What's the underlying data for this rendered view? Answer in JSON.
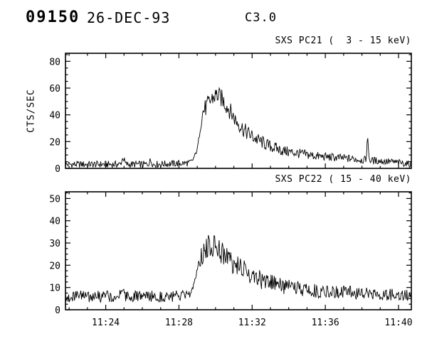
{
  "header": {
    "flare_id": "09150",
    "date": "26-DEC-93",
    "goes_class": "C3.0"
  },
  "chart_data": [
    {
      "type": "line",
      "title": "SXS PC21 (  3 - 15 keV)",
      "ylabel": "CTS/SEC",
      "xlabel": "",
      "x_axis": "time UT, stored as minutes after 11:00",
      "ylim": [
        0,
        86
      ],
      "yticks": [
        0,
        20,
        40,
        60,
        80
      ],
      "y_minor_step": 5,
      "xlim": [
        21.8,
        40.7
      ],
      "xticks": [
        24,
        28,
        32,
        36,
        40
      ],
      "xtick_labels": [
        "11:24",
        "11:28",
        "11:32",
        "11:36",
        "11:40"
      ],
      "x_minor_step": 1,
      "grid": false,
      "legend": "none",
      "series": [
        {
          "name": "SXS PC21 3-15 keV counts",
          "envelope": [
            [
              21.8,
              3
            ],
            [
              24.8,
              3
            ],
            [
              24.95,
              8
            ],
            [
              25.1,
              3
            ],
            [
              26.3,
              3
            ],
            [
              26.45,
              6
            ],
            [
              26.6,
              3
            ],
            [
              28.55,
              4
            ],
            [
              28.75,
              6
            ],
            [
              29.0,
              14
            ],
            [
              29.3,
              42
            ],
            [
              29.5,
              46
            ],
            [
              29.8,
              52
            ],
            [
              30.05,
              55
            ],
            [
              30.35,
              52
            ],
            [
              30.7,
              45
            ],
            [
              31.1,
              36
            ],
            [
              31.6,
              28
            ],
            [
              32.2,
              22
            ],
            [
              32.9,
              17
            ],
            [
              33.7,
              13
            ],
            [
              34.6,
              11
            ],
            [
              35.6,
              9
            ],
            [
              36.6,
              8
            ],
            [
              37.6,
              7
            ],
            [
              38.22,
              6
            ],
            [
              38.3,
              23
            ],
            [
              38.42,
              6
            ],
            [
              39.5,
              5
            ],
            [
              40.2,
              4
            ],
            [
              40.7,
              3
            ]
          ],
          "noise_envelope": [
            [
              21.8,
              2.6
            ],
            [
              28.5,
              2.6
            ],
            [
              28.8,
              1.2
            ],
            [
              29.15,
              1.8
            ],
            [
              29.35,
              7
            ],
            [
              30.4,
              7
            ],
            [
              31.5,
              6
            ],
            [
              32.5,
              5
            ],
            [
              34,
              4
            ],
            [
              36,
              3.2
            ],
            [
              38,
              3
            ],
            [
              40.7,
              2.4
            ]
          ]
        }
      ]
    },
    {
      "type": "line",
      "title": "SXS PC22 ( 15 - 40 keV)",
      "ylabel": "",
      "xlabel": "",
      "x_axis": "time UT, stored as minutes after 11:00",
      "ylim": [
        0,
        53
      ],
      "yticks": [
        0,
        10,
        20,
        30,
        40,
        50
      ],
      "y_minor_step": 2.5,
      "xlim": [
        21.8,
        40.7
      ],
      "xticks": [
        24,
        28,
        32,
        36,
        40
      ],
      "xtick_labels": [
        "11:24",
        "11:28",
        "11:32",
        "11:36",
        "11:40"
      ],
      "x_minor_step": 1,
      "grid": false,
      "legend": "none",
      "series": [
        {
          "name": "SXS PC22 15-40 keV counts",
          "envelope": [
            [
              21.8,
              6
            ],
            [
              24.7,
              6
            ],
            [
              24.9,
              10
            ],
            [
              25.1,
              6
            ],
            [
              28.55,
              6
            ],
            [
              28.8,
              11
            ],
            [
              29.1,
              22
            ],
            [
              29.4,
              27
            ],
            [
              29.7,
              29
            ],
            [
              30.0,
              29
            ],
            [
              30.35,
              26
            ],
            [
              30.8,
              22
            ],
            [
              31.3,
              19
            ],
            [
              31.9,
              16
            ],
            [
              32.6,
              13
            ],
            [
              33.4,
              11
            ],
            [
              34.3,
              9.5
            ],
            [
              35.4,
              8.5
            ],
            [
              36.6,
              8
            ],
            [
              38.0,
              7.5
            ],
            [
              39.3,
              7
            ],
            [
              40.7,
              6
            ]
          ],
          "noise_envelope": [
            [
              21.8,
              2.6
            ],
            [
              28.5,
              2.6
            ],
            [
              28.8,
              1.2
            ],
            [
              29.05,
              1.5
            ],
            [
              29.25,
              5.5
            ],
            [
              30.5,
              5.5
            ],
            [
              31.8,
              4.5
            ],
            [
              33,
              4
            ],
            [
              35,
              3.2
            ],
            [
              37,
              3
            ],
            [
              40.7,
              2.8
            ]
          ]
        }
      ]
    }
  ]
}
